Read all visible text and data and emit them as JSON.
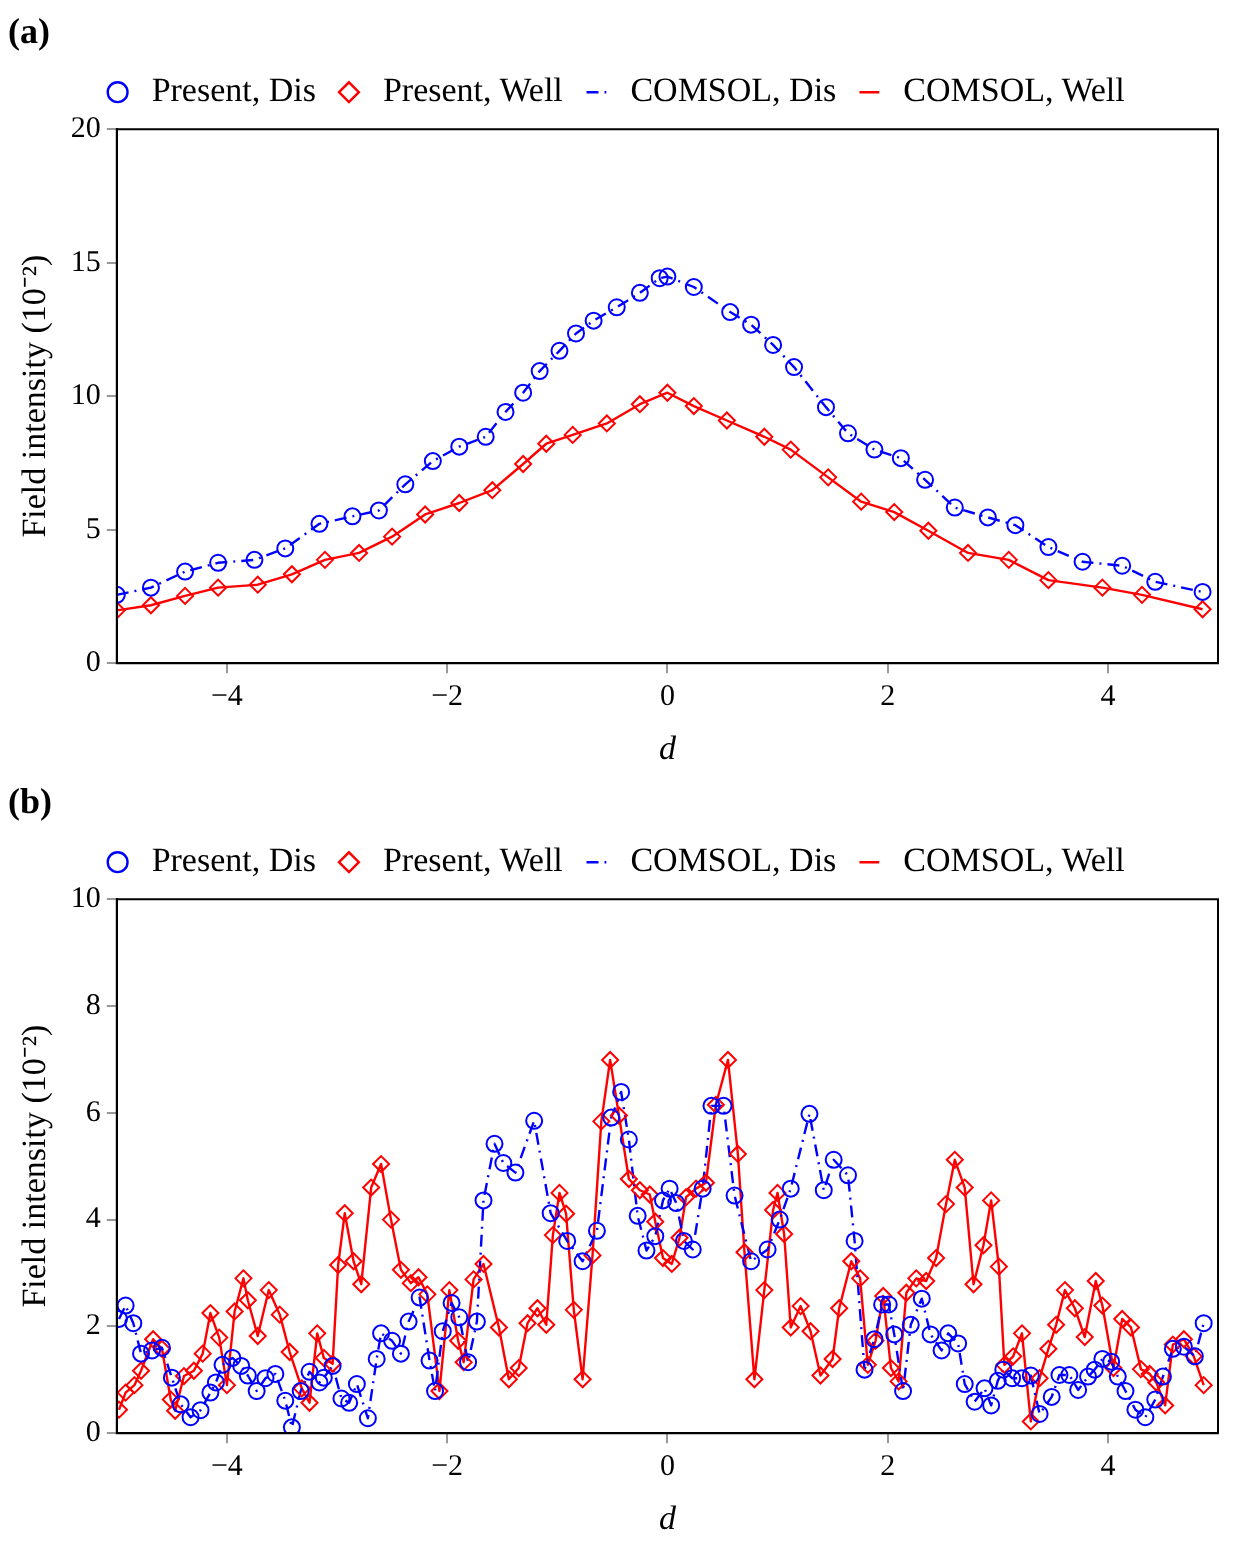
{
  "chart_data": [
    {
      "type": "line",
      "title": "(a)",
      "xlabel": "d",
      "ylabel": "Field intensity (10⁻²)",
      "xlim": [
        -5,
        5
      ],
      "xticks": [
        -4,
        -2,
        0,
        2,
        4
      ],
      "ylim": [
        0,
        20
      ],
      "yticks": [
        0,
        5,
        10,
        15,
        20
      ],
      "legend": "top",
      "grid": false,
      "series": [
        {
          "name": "Present, Dis",
          "type": "scatter",
          "marker": "circle",
          "color": "#0000ff",
          "x": [
            -5,
            -4.69,
            -4.38,
            -4.08,
            -3.75,
            -3.47,
            -3.16,
            -2.86,
            -2.62,
            -2.38,
            -2.13,
            -1.89,
            -1.65,
            -1.47,
            -1.31,
            -1.16,
            -0.98,
            -0.83,
            -0.67,
            -0.46,
            -0.25,
            -0.07,
            0,
            0.24,
            0.57,
            0.76,
            0.96,
            1.15,
            1.44,
            1.64,
            1.88,
            2.12,
            2.34,
            2.61,
            2.91,
            3.16,
            3.46,
            3.77,
            4.13,
            4.43,
            4.86
          ],
          "values": [
            2.56,
            2.83,
            3.43,
            3.76,
            3.87,
            4.3,
            5.22,
            5.5,
            5.72,
            6.7,
            7.57,
            8.11,
            8.48,
            9.41,
            10.13,
            10.94,
            11.7,
            12.35,
            12.83,
            13.33,
            13.87,
            14.42,
            14.48,
            14.09,
            13.15,
            12.68,
            11.92,
            11.09,
            9.59,
            8.61,
            8.0,
            7.68,
            6.87,
            5.83,
            5.46,
            5.17,
            4.35,
            3.8,
            3.65,
            3.05,
            2.67
          ]
        },
        {
          "name": "Present, Well",
          "type": "scatter",
          "marker": "diamond",
          "color": "#ff0000",
          "x": [
            -5,
            -4.69,
            -4.38,
            -4.08,
            -3.72,
            -3.41,
            -3.11,
            -2.8,
            -2.5,
            -2.2,
            -1.89,
            -1.59,
            -1.31,
            -1.1,
            -0.86,
            -0.55,
            -0.25,
            0,
            0.24,
            0.54,
            0.88,
            1.12,
            1.46,
            1.76,
            2.06,
            2.37,
            2.73,
            3.1,
            3.46,
            3.95,
            4.31,
            4.86
          ],
          "values": [
            1.98,
            2.17,
            2.52,
            2.83,
            2.94,
            3.33,
            3.87,
            4.13,
            4.74,
            5.57,
            6.0,
            6.48,
            7.46,
            8.22,
            8.55,
            8.98,
            9.7,
            10.13,
            9.63,
            9.09,
            8.48,
            8.0,
            6.96,
            6.05,
            5.66,
            4.96,
            4.13,
            3.87,
            3.11,
            2.83,
            2.56,
            2.02
          ]
        },
        {
          "name": "COMSOL, Dis",
          "type": "line",
          "marker": "none",
          "line_style": "dashed",
          "color": "#0000ff",
          "x": [
            -5,
            -4.69,
            -4.38,
            -4.08,
            -3.75,
            -3.47,
            -3.16,
            -2.86,
            -2.62,
            -2.38,
            -2.13,
            -1.89,
            -1.65,
            -1.47,
            -1.31,
            -1.16,
            -0.98,
            -0.83,
            -0.67,
            -0.46,
            -0.25,
            -0.07,
            0,
            0.24,
            0.57,
            0.76,
            0.96,
            1.15,
            1.44,
            1.64,
            1.88,
            2.12,
            2.34,
            2.61,
            2.91,
            3.16,
            3.46,
            3.77,
            4.13,
            4.43,
            4.86
          ],
          "values": [
            2.56,
            2.83,
            3.43,
            3.76,
            3.87,
            4.3,
            5.22,
            5.5,
            5.72,
            6.7,
            7.57,
            8.11,
            8.48,
            9.41,
            10.13,
            10.94,
            11.7,
            12.35,
            12.83,
            13.33,
            13.87,
            14.42,
            14.48,
            14.09,
            13.15,
            12.68,
            11.92,
            11.09,
            9.59,
            8.61,
            8.0,
            7.68,
            6.87,
            5.83,
            5.46,
            5.17,
            4.35,
            3.8,
            3.65,
            3.05,
            2.67
          ]
        },
        {
          "name": "COMSOL, Well",
          "type": "line",
          "marker": "none",
          "line_style": "solid",
          "color": "#ff0000",
          "x": [
            -5,
            -4.69,
            -4.38,
            -4.08,
            -3.72,
            -3.41,
            -3.11,
            -2.8,
            -2.5,
            -2.2,
            -1.89,
            -1.59,
            -1.31,
            -1.1,
            -0.86,
            -0.55,
            -0.25,
            0,
            0.24,
            0.54,
            0.88,
            1.12,
            1.46,
            1.76,
            2.06,
            2.37,
            2.73,
            3.1,
            3.46,
            3.95,
            4.31,
            4.86
          ],
          "values": [
            1.98,
            2.17,
            2.52,
            2.83,
            2.94,
            3.33,
            3.87,
            4.13,
            4.74,
            5.57,
            6.0,
            6.48,
            7.46,
            8.22,
            8.55,
            8.98,
            9.7,
            10.13,
            9.63,
            9.09,
            8.48,
            8.0,
            6.96,
            6.05,
            5.66,
            4.96,
            4.13,
            3.87,
            3.11,
            2.83,
            2.56,
            2.02
          ]
        }
      ]
    },
    {
      "type": "line",
      "title": "(b)",
      "xlabel": "d",
      "ylabel": "Field intensity (10⁻²)",
      "xlim": [
        -5,
        5
      ],
      "xticks": [
        -4,
        -2,
        0,
        2,
        4
      ],
      "ylim": [
        0,
        10
      ],
      "yticks": [
        0,
        2,
        4,
        6,
        8,
        10
      ],
      "legend": "top",
      "grid": false,
      "series": [
        {
          "name": "Present, Dis",
          "type": "scatter",
          "marker": "circle",
          "color": "#0000ff",
          "x": [
            -4.98,
            -4.92,
            -4.85,
            -4.78,
            -4.68,
            -4.59,
            -4.5,
            -4.42,
            -4.33,
            -4.24,
            -4.15,
            -4.1,
            -4.04,
            -3.95,
            -3.87,
            -3.81,
            -3.73,
            -3.65,
            -3.56,
            -3.47,
            -3.41,
            -3.33,
            -3.25,
            -3.16,
            -3.12,
            -3.04,
            -2.96,
            -2.89,
            -2.82,
            -2.72,
            -2.64,
            -2.6,
            -2.5,
            -2.42,
            -2.35,
            -2.25,
            -2.16,
            -2.11,
            -2.04,
            -1.96,
            -1.89,
            -1.81,
            -1.73,
            -1.67,
            -1.57,
            -1.49,
            -1.38,
            -1.21,
            -1.06,
            -0.91,
            -0.77,
            -0.64,
            -0.51,
            -0.42,
            -0.35,
            -0.27,
            -0.19,
            -0.11,
            -0.04,
            0.02,
            0.08,
            0.15,
            0.23,
            0.32,
            0.4,
            0.51,
            0.61,
            0.76,
            0.91,
            1.02,
            1.12,
            1.29,
            1.42,
            1.51,
            1.64,
            1.7,
            1.79,
            1.88,
            1.95,
            2.01,
            2.06,
            2.14,
            2.21,
            2.31,
            2.39,
            2.49,
            2.55,
            2.64,
            2.7,
            2.79,
            2.88,
            2.94,
            3.0,
            3.05,
            3.13,
            3.22,
            3.3,
            3.38,
            3.49,
            3.56,
            3.65,
            3.73,
            3.82,
            3.88,
            3.95,
            4.03,
            4.09,
            4.16,
            4.25,
            4.34,
            4.43,
            4.5,
            4.59,
            4.69,
            4.79,
            4.87
          ],
          "values": [
            2.14,
            2.39,
            2.06,
            1.49,
            1.55,
            1.6,
            1.04,
            0.54,
            0.3,
            0.43,
            0.76,
            0.95,
            1.28,
            1.41,
            1.26,
            1.08,
            0.79,
            1.03,
            1.11,
            0.61,
            0.11,
            0.79,
            1.15,
            0.95,
            1.04,
            1.26,
            0.65,
            0.57,
            0.92,
            0.28,
            1.39,
            1.87,
            1.73,
            1.49,
            2.09,
            2.54,
            1.36,
            0.79,
            1.91,
            2.44,
            2.17,
            1.33,
            2.09,
            4.36,
            5.42,
            5.06,
            4.88,
            5.85,
            4.12,
            3.6,
            3.22,
            3.79,
            5.91,
            6.39,
            5.5,
            4.07,
            3.42,
            3.69,
            4.36,
            4.58,
            4.31,
            3.6,
            3.44,
            4.58,
            6.13,
            6.13,
            4.45,
            3.22,
            3.44,
            4.0,
            4.58,
            5.98,
            4.55,
            5.12,
            4.83,
            3.6,
            1.19,
            1.76,
            2.41,
            2.41,
            1.85,
            0.79,
            2.03,
            2.52,
            1.85,
            1.55,
            1.87,
            1.68,
            0.92,
            0.59,
            0.84,
            0.52,
            0.98,
            1.19,
            1.03,
            1.03,
            1.08,
            0.36,
            0.68,
            1.09,
            1.09,
            0.81,
            1.06,
            1.19,
            1.39,
            1.34,
            1.06,
            0.79,
            0.44,
            0.3,
            0.63,
            1.06,
            1.58,
            1.62,
            1.44,
            2.06
          ]
        },
        {
          "name": "Present, Well",
          "type": "scatter",
          "marker": "diamond",
          "color": "#ff0000",
          "x": [
            -4.98,
            -4.92,
            -4.84,
            -4.78,
            -4.67,
            -4.59,
            -4.51,
            -4.47,
            -4.39,
            -4.3,
            -4.22,
            -4.15,
            -4.07,
            -4.0,
            -3.93,
            -3.85,
            -3.81,
            -3.72,
            -3.62,
            -3.52,
            -3.43,
            -3.32,
            -3.25,
            -3.18,
            -3.12,
            -3.04,
            -2.99,
            -2.93,
            -2.85,
            -2.78,
            -2.69,
            -2.6,
            -2.51,
            -2.42,
            -2.33,
            -2.26,
            -2.18,
            -2.07,
            -1.98,
            -1.9,
            -1.85,
            -1.76,
            -1.67,
            -1.53,
            -1.44,
            -1.35,
            -1.27,
            -1.18,
            -1.1,
            -1.04,
            -0.98,
            -0.92,
            -0.85,
            -0.77,
            -0.68,
            -0.6,
            -0.52,
            -0.44,
            -0.35,
            -0.25,
            -0.16,
            -0.11,
            -0.04,
            0.04,
            0.11,
            0.17,
            0.26,
            0.35,
            0.44,
            0.55,
            0.64,
            0.7,
            0.79,
            0.88,
            0.96,
            1.0,
            1.06,
            1.12,
            1.21,
            1.3,
            1.39,
            1.5,
            1.56,
            1.67,
            1.75,
            1.82,
            1.89,
            1.96,
            2.03,
            2.1,
            2.17,
            2.26,
            2.35,
            2.44,
            2.53,
            2.61,
            2.7,
            2.78,
            2.87,
            2.94,
            3.01,
            3.06,
            3.14,
            3.22,
            3.3,
            3.38,
            3.46,
            3.53,
            3.61,
            3.7,
            3.79,
            3.89,
            3.95,
            4.05,
            4.13,
            4.21,
            4.3,
            4.38,
            4.44,
            4.52,
            4.59,
            4.69,
            4.78,
            4.87
          ],
          "values": [
            0.44,
            0.76,
            0.9,
            1.17,
            1.76,
            1.58,
            0.63,
            0.42,
            1.07,
            1.17,
            1.49,
            2.25,
            1.79,
            0.9,
            2.28,
            2.9,
            2.49,
            1.82,
            2.68,
            2.22,
            1.52,
            0.84,
            0.57,
            1.87,
            1.41,
            1.3,
            3.15,
            4.12,
            3.22,
            2.79,
            4.6,
            5.04,
            4.0,
            3.06,
            2.81,
            2.92,
            2.6,
            0.79,
            2.68,
            1.73,
            1.33,
            2.88,
            3.17,
            1.98,
            1.01,
            1.22,
            2.06,
            2.34,
            2.03,
            3.71,
            4.5,
            4.11,
            2.31,
            1.01,
            3.33,
            5.84,
            6.99,
            5.95,
            4.76,
            4.55,
            4.47,
            3.96,
            3.28,
            3.17,
            3.66,
            4.42,
            4.58,
            4.69,
            6.15,
            6.99,
            5.23,
            3.39,
            1.01,
            2.68,
            4.18,
            4.5,
            3.73,
            1.98,
            2.38,
            1.91,
            1.08,
            1.39,
            2.34,
            3.22,
            2.9,
            1.28,
            1.73,
            2.57,
            1.22,
            0.97,
            2.63,
            2.9,
            2.85,
            3.28,
            4.29,
            5.12,
            4.6,
            2.79,
            3.52,
            4.36,
            3.12,
            1.28,
            1.44,
            1.87,
            0.22,
            1.03,
            1.58,
            2.03,
            2.68,
            2.34,
            1.8,
            2.85,
            2.39,
            1.22,
            2.14,
            1.98,
            1.2,
            1.11,
            0.95,
            0.52,
            1.66,
            1.76,
            1.44,
            0.9
          ]
        },
        {
          "name": "COMSOL, Dis",
          "type": "line",
          "marker": "none",
          "line_style": "dashed",
          "color": "#0000ff",
          "x": [
            -4.98,
            -4.92,
            -4.85,
            -4.78,
            -4.68,
            -4.59,
            -4.5,
            -4.42,
            -4.33,
            -4.24,
            -4.15,
            -4.1,
            -4.04,
            -3.95,
            -3.87,
            -3.81,
            -3.73,
            -3.65,
            -3.56,
            -3.47,
            -3.41,
            -3.33,
            -3.25,
            -3.16,
            -3.12,
            -3.04,
            -2.96,
            -2.89,
            -2.82,
            -2.72,
            -2.64,
            -2.6,
            -2.5,
            -2.42,
            -2.35,
            -2.25,
            -2.16,
            -2.11,
            -2.04,
            -1.96,
            -1.89,
            -1.81,
            -1.73,
            -1.67,
            -1.57,
            -1.49,
            -1.38,
            -1.21,
            -1.06,
            -0.91,
            -0.77,
            -0.64,
            -0.51,
            -0.42,
            -0.35,
            -0.27,
            -0.19,
            -0.11,
            -0.04,
            0.02,
            0.08,
            0.15,
            0.23,
            0.32,
            0.4,
            0.51,
            0.61,
            0.76,
            0.91,
            1.02,
            1.12,
            1.29,
            1.42,
            1.51,
            1.64,
            1.7,
            1.79,
            1.88,
            1.95,
            2.01,
            2.06,
            2.14,
            2.21,
            2.31,
            2.39,
            2.49,
            2.55,
            2.64,
            2.7,
            2.79,
            2.88,
            2.94,
            3.0,
            3.05,
            3.13,
            3.22,
            3.3,
            3.38,
            3.49,
            3.56,
            3.65,
            3.73,
            3.82,
            3.88,
            3.95,
            4.03,
            4.09,
            4.16,
            4.25,
            4.34,
            4.43,
            4.5,
            4.59,
            4.69,
            4.79,
            4.87
          ],
          "values": [
            2.14,
            2.39,
            2.06,
            1.49,
            1.55,
            1.6,
            1.04,
            0.54,
            0.3,
            0.43,
            0.76,
            0.95,
            1.28,
            1.41,
            1.26,
            1.08,
            0.79,
            1.03,
            1.11,
            0.61,
            0.11,
            0.79,
            1.15,
            0.95,
            1.04,
            1.26,
            0.65,
            0.57,
            0.92,
            0.28,
            1.39,
            1.87,
            1.73,
            1.49,
            2.09,
            2.54,
            1.36,
            0.79,
            1.91,
            2.44,
            2.17,
            1.33,
            2.09,
            4.36,
            5.42,
            5.06,
            4.88,
            5.85,
            4.12,
            3.6,
            3.22,
            3.79,
            5.91,
            6.39,
            5.5,
            4.07,
            3.42,
            3.69,
            4.36,
            4.58,
            4.31,
            3.6,
            3.44,
            4.58,
            6.13,
            6.13,
            4.45,
            3.22,
            3.44,
            4.0,
            4.58,
            5.98,
            4.55,
            5.12,
            4.83,
            3.6,
            1.19,
            1.76,
            2.41,
            2.41,
            1.85,
            0.79,
            2.03,
            2.52,
            1.85,
            1.55,
            1.87,
            1.68,
            0.92,
            0.59,
            0.84,
            0.52,
            0.98,
            1.19,
            1.03,
            1.03,
            1.08,
            0.36,
            0.68,
            1.09,
            1.09,
            0.81,
            1.06,
            1.19,
            1.39,
            1.34,
            1.06,
            0.79,
            0.44,
            0.3,
            0.63,
            1.06,
            1.58,
            1.62,
            1.44,
            2.06
          ]
        },
        {
          "name": "COMSOL, Well",
          "type": "line",
          "marker": "none",
          "line_style": "solid",
          "color": "#ff0000",
          "x": [
            -4.98,
            -4.92,
            -4.84,
            -4.78,
            -4.67,
            -4.59,
            -4.51,
            -4.47,
            -4.39,
            -4.3,
            -4.22,
            -4.15,
            -4.07,
            -4.0,
            -3.93,
            -3.85,
            -3.81,
            -3.72,
            -3.62,
            -3.52,
            -3.43,
            -3.32,
            -3.25,
            -3.18,
            -3.12,
            -3.04,
            -2.99,
            -2.93,
            -2.85,
            -2.78,
            -2.69,
            -2.6,
            -2.51,
            -2.42,
            -2.33,
            -2.26,
            -2.18,
            -2.07,
            -1.98,
            -1.9,
            -1.85,
            -1.76,
            -1.67,
            -1.53,
            -1.44,
            -1.35,
            -1.27,
            -1.18,
            -1.1,
            -1.04,
            -0.98,
            -0.92,
            -0.85,
            -0.77,
            -0.68,
            -0.6,
            -0.52,
            -0.44,
            -0.35,
            -0.25,
            -0.16,
            -0.11,
            -0.04,
            0.04,
            0.11,
            0.17,
            0.26,
            0.35,
            0.44,
            0.55,
            0.64,
            0.7,
            0.79,
            0.88,
            0.96,
            1.0,
            1.06,
            1.12,
            1.21,
            1.3,
            1.39,
            1.5,
            1.56,
            1.67,
            1.75,
            1.82,
            1.89,
            1.96,
            2.03,
            2.1,
            2.17,
            2.26,
            2.35,
            2.44,
            2.53,
            2.61,
            2.7,
            2.78,
            2.87,
            2.94,
            3.01,
            3.06,
            3.14,
            3.22,
            3.3,
            3.38,
            3.46,
            3.53,
            3.61,
            3.7,
            3.79,
            3.89,
            3.95,
            4.05,
            4.13,
            4.21,
            4.3,
            4.38,
            4.44,
            4.52,
            4.59,
            4.69,
            4.78,
            4.87
          ],
          "values": [
            0.44,
            0.76,
            0.9,
            1.17,
            1.76,
            1.58,
            0.63,
            0.42,
            1.07,
            1.17,
            1.49,
            2.25,
            1.79,
            0.9,
            2.28,
            2.9,
            2.49,
            1.82,
            2.68,
            2.22,
            1.52,
            0.84,
            0.57,
            1.87,
            1.41,
            1.3,
            3.15,
            4.12,
            3.22,
            2.79,
            4.6,
            5.04,
            4.0,
            3.06,
            2.81,
            2.92,
            2.6,
            0.79,
            2.68,
            1.73,
            1.33,
            2.88,
            3.17,
            1.98,
            1.01,
            1.22,
            2.06,
            2.34,
            2.03,
            3.71,
            4.5,
            4.11,
            2.31,
            1.01,
            3.33,
            5.84,
            6.99,
            5.95,
            4.76,
            4.55,
            4.47,
            3.96,
            3.28,
            3.17,
            3.66,
            4.42,
            4.58,
            4.69,
            6.15,
            6.99,
            5.23,
            3.39,
            1.01,
            2.68,
            4.18,
            4.5,
            3.73,
            1.98,
            2.38,
            1.91,
            1.08,
            1.39,
            2.34,
            3.22,
            2.9,
            1.28,
            1.73,
            2.57,
            1.22,
            0.97,
            2.63,
            2.9,
            2.85,
            3.28,
            4.29,
            5.12,
            4.6,
            2.79,
            3.52,
            4.36,
            3.12,
            1.28,
            1.44,
            1.87,
            0.22,
            1.03,
            1.58,
            2.03,
            2.68,
            2.34,
            1.8,
            2.85,
            2.39,
            1.22,
            2.14,
            1.98,
            1.2,
            1.11,
            0.95,
            0.52,
            1.66,
            1.76,
            1.44,
            0.9
          ]
        }
      ]
    }
  ]
}
